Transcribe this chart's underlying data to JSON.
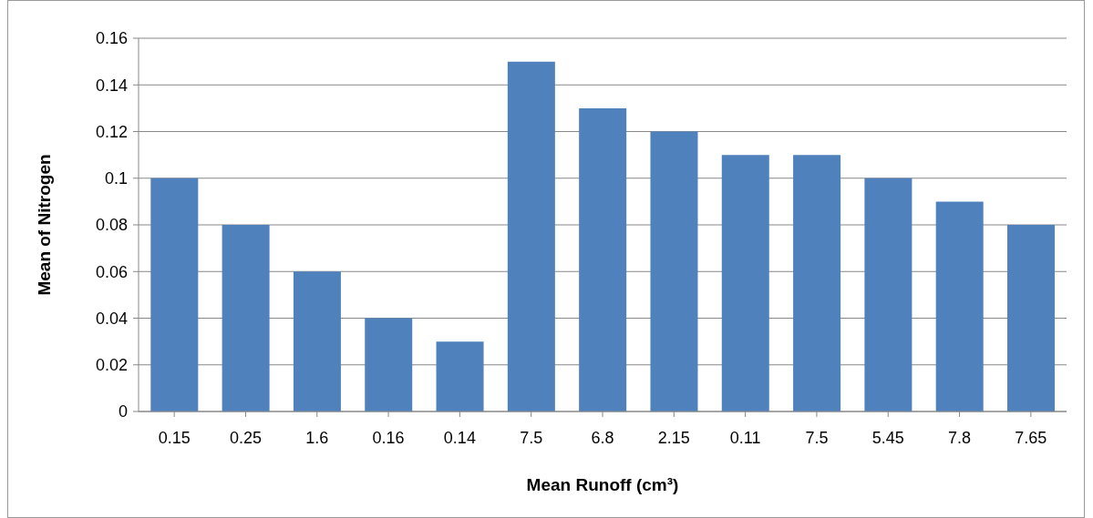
{
  "chart_data": {
    "type": "bar",
    "xlabel": "Mean Runoff (cm³)",
    "ylabel": "Mean of Nitrogen",
    "categories": [
      "0.15",
      "0.25",
      "1.6",
      "0.16",
      "0.14",
      "7.5",
      "6.8",
      "2.15",
      "0.11",
      "7.5",
      "5.45",
      "7.8",
      "7.65"
    ],
    "values": [
      0.1,
      0.08,
      0.06,
      0.04,
      0.03,
      0.15,
      0.13,
      0.12,
      0.11,
      0.11,
      0.1,
      0.09,
      0.08
    ],
    "color": "#4f81bd",
    "ylim": [
      0,
      0.16
    ],
    "yticks": [
      0,
      0.02,
      0.04,
      0.06,
      0.08,
      0.1,
      0.12,
      0.14,
      0.16
    ],
    "grid": "y",
    "legend": false
  }
}
